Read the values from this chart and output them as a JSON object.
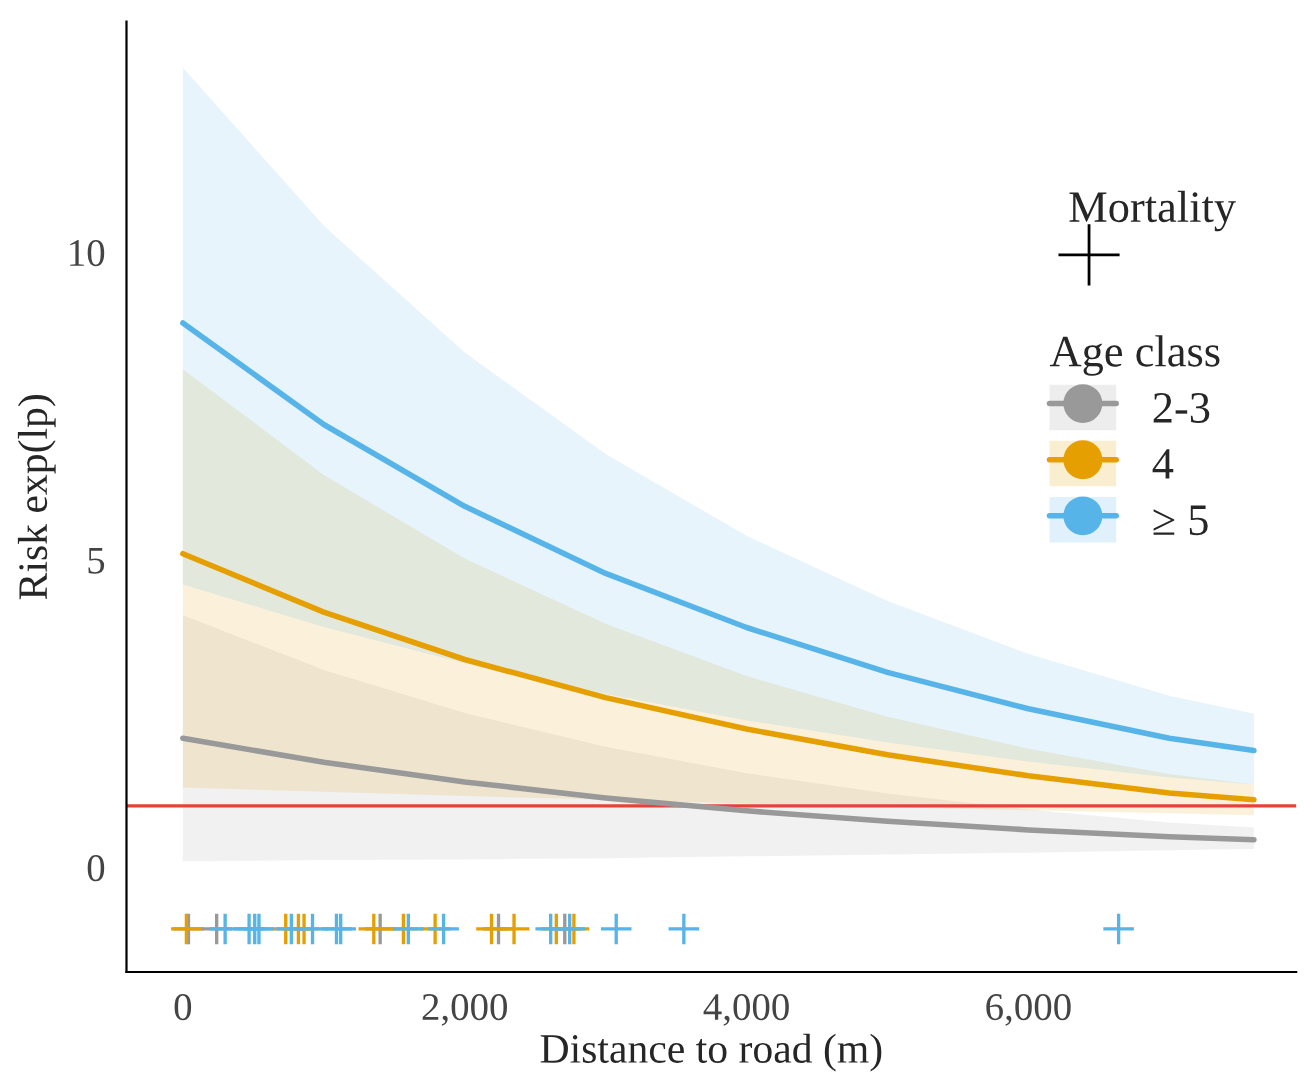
{
  "chart_data": {
    "type": "line",
    "xlabel": "Distance to road (m)",
    "ylabel": "Risk exp(lp)",
    "legend_title": "Age class",
    "annotations": [
      "Mortality"
    ],
    "xlim": [
      -400,
      7900
    ],
    "xticks": [
      0,
      {
        "value": 2000,
        "label": "2,000"
      },
      {
        "value": 4000,
        "label": "4,000"
      },
      {
        "value": 6000,
        "label": "6,000"
      }
    ],
    "ylim": [
      -1.7,
      13.75
    ],
    "yticks": [
      0,
      5,
      10
    ],
    "grid": false,
    "legend": "right",
    "ref_lines": [
      {
        "axis": "y",
        "value": 1,
        "color": "#e8403a",
        "line_style": "solid"
      }
    ],
    "series": [
      {
        "name": "2-3",
        "type": "line",
        "color": "#999999",
        "x": [
          0,
          1000,
          2000,
          3000,
          4000,
          5000,
          6000,
          7000,
          7600
        ],
        "values": [
          2.1,
          1.71,
          1.39,
          1.13,
          0.92,
          0.75,
          0.61,
          0.5,
          0.45
        ],
        "lower": [
          0.1,
          0.12,
          0.13,
          0.15,
          0.18,
          0.21,
          0.24,
          0.28,
          0.3
        ],
        "upper": [
          4.1,
          3.21,
          2.51,
          1.96,
          1.53,
          1.2,
          0.94,
          0.73,
          0.65
        ]
      },
      {
        "name": "4",
        "type": "line",
        "color": "#e69f00",
        "x": [
          0,
          1000,
          2000,
          3000,
          4000,
          5000,
          6000,
          7000,
          7600
        ],
        "values": [
          5.1,
          4.15,
          3.38,
          2.76,
          2.25,
          1.83,
          1.49,
          1.21,
          1.1
        ],
        "lower": [
          1.3,
          1.23,
          1.16,
          1.1,
          1.04,
          0.98,
          0.93,
          0.88,
          0.85
        ],
        "upper": [
          8.1,
          6.38,
          5.02,
          3.96,
          3.11,
          2.45,
          1.93,
          1.52,
          1.35
        ]
      },
      {
        "name": "≥ 5",
        "type": "line",
        "color": "#56b4e9",
        "x": [
          0,
          1000,
          2000,
          3000,
          4000,
          5000,
          6000,
          7000,
          7600
        ],
        "values": [
          8.85,
          7.2,
          5.87,
          4.78,
          3.9,
          3.17,
          2.58,
          2.1,
          1.9
        ],
        "lower": [
          4.6,
          3.91,
          3.32,
          2.82,
          2.39,
          2.03,
          1.72,
          1.46,
          1.35
        ],
        "upper": [
          13.0,
          10.43,
          8.37,
          6.72,
          5.39,
          4.33,
          3.47,
          2.79,
          2.5
        ]
      },
      {
        "type": "scatter",
        "marker": "cross",
        "color": "#999999",
        "x": [
          40,
          240,
          1400,
          2240,
          2710
        ],
        "values": [
          -1,
          -1,
          -1,
          -1,
          -1
        ]
      },
      {
        "type": "scatter",
        "marker": "cross",
        "color": "#e69f00",
        "x": [
          25,
          730,
          820,
          860,
          1355,
          1565,
          1790,
          2190,
          2350,
          2650,
          2775
        ],
        "values": [
          -1,
          -1,
          -1,
          -1,
          -1,
          -1,
          -1,
          -1,
          -1,
          -1,
          -1
        ]
      },
      {
        "type": "scatter",
        "marker": "cross",
        "color": "#56b4e9",
        "x": [
          300,
          470,
          510,
          540,
          770,
          920,
          1090,
          1120,
          1600,
          1850,
          2610,
          2745,
          3075,
          3555,
          6640
        ],
        "values": [
          -1,
          -1,
          -1,
          -1,
          -1,
          -1,
          -1,
          -1,
          -1,
          -1,
          -1,
          -1,
          -1,
          -1,
          -1
        ]
      }
    ]
  }
}
